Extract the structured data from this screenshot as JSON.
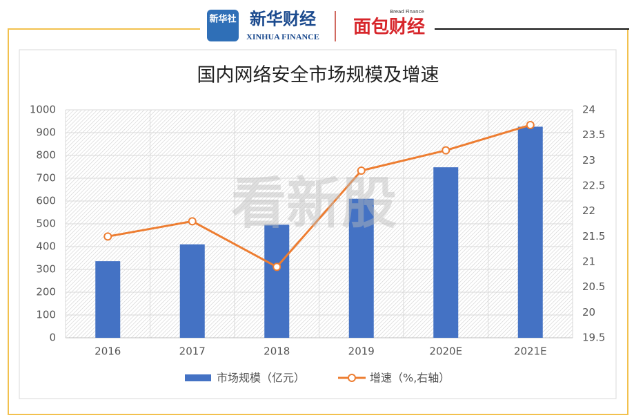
{
  "header": {
    "logo_left": "新华社",
    "brand": "新华财经",
    "brand_en": "XINHUA FINANCE",
    "partner": "面包财经",
    "partner_en": "Bread Finance"
  },
  "watermark": "看新股",
  "chart_data": {
    "type": "bar_line",
    "title": "国内网络安全市场规模及增速",
    "categories": [
      "2016",
      "2017",
      "2018",
      "2019",
      "2020E",
      "2021E"
    ],
    "series": [
      {
        "name": "市场规模（亿元）",
        "color": "#4472c4",
        "type": "bar",
        "values": [
          336,
          410,
          496,
          610,
          748,
          926
        ]
      },
      {
        "name": "增速（%,右轴）",
        "color": "#ed7d31",
        "type": "line",
        "axis": "y2",
        "values": [
          21.5,
          21.8,
          20.9,
          22.8,
          23.2,
          23.7
        ]
      }
    ],
    "ylim": [
      0,
      1000
    ],
    "yticks": [
      0,
      100,
      200,
      300,
      400,
      500,
      600,
      700,
      800,
      900,
      1000
    ],
    "y2lim": [
      19.5,
      24
    ],
    "y2ticks": [
      19.5,
      20,
      20.5,
      21,
      21.5,
      22,
      22.5,
      23,
      23.5,
      24
    ],
    "grid": true,
    "legend": "bottom"
  }
}
